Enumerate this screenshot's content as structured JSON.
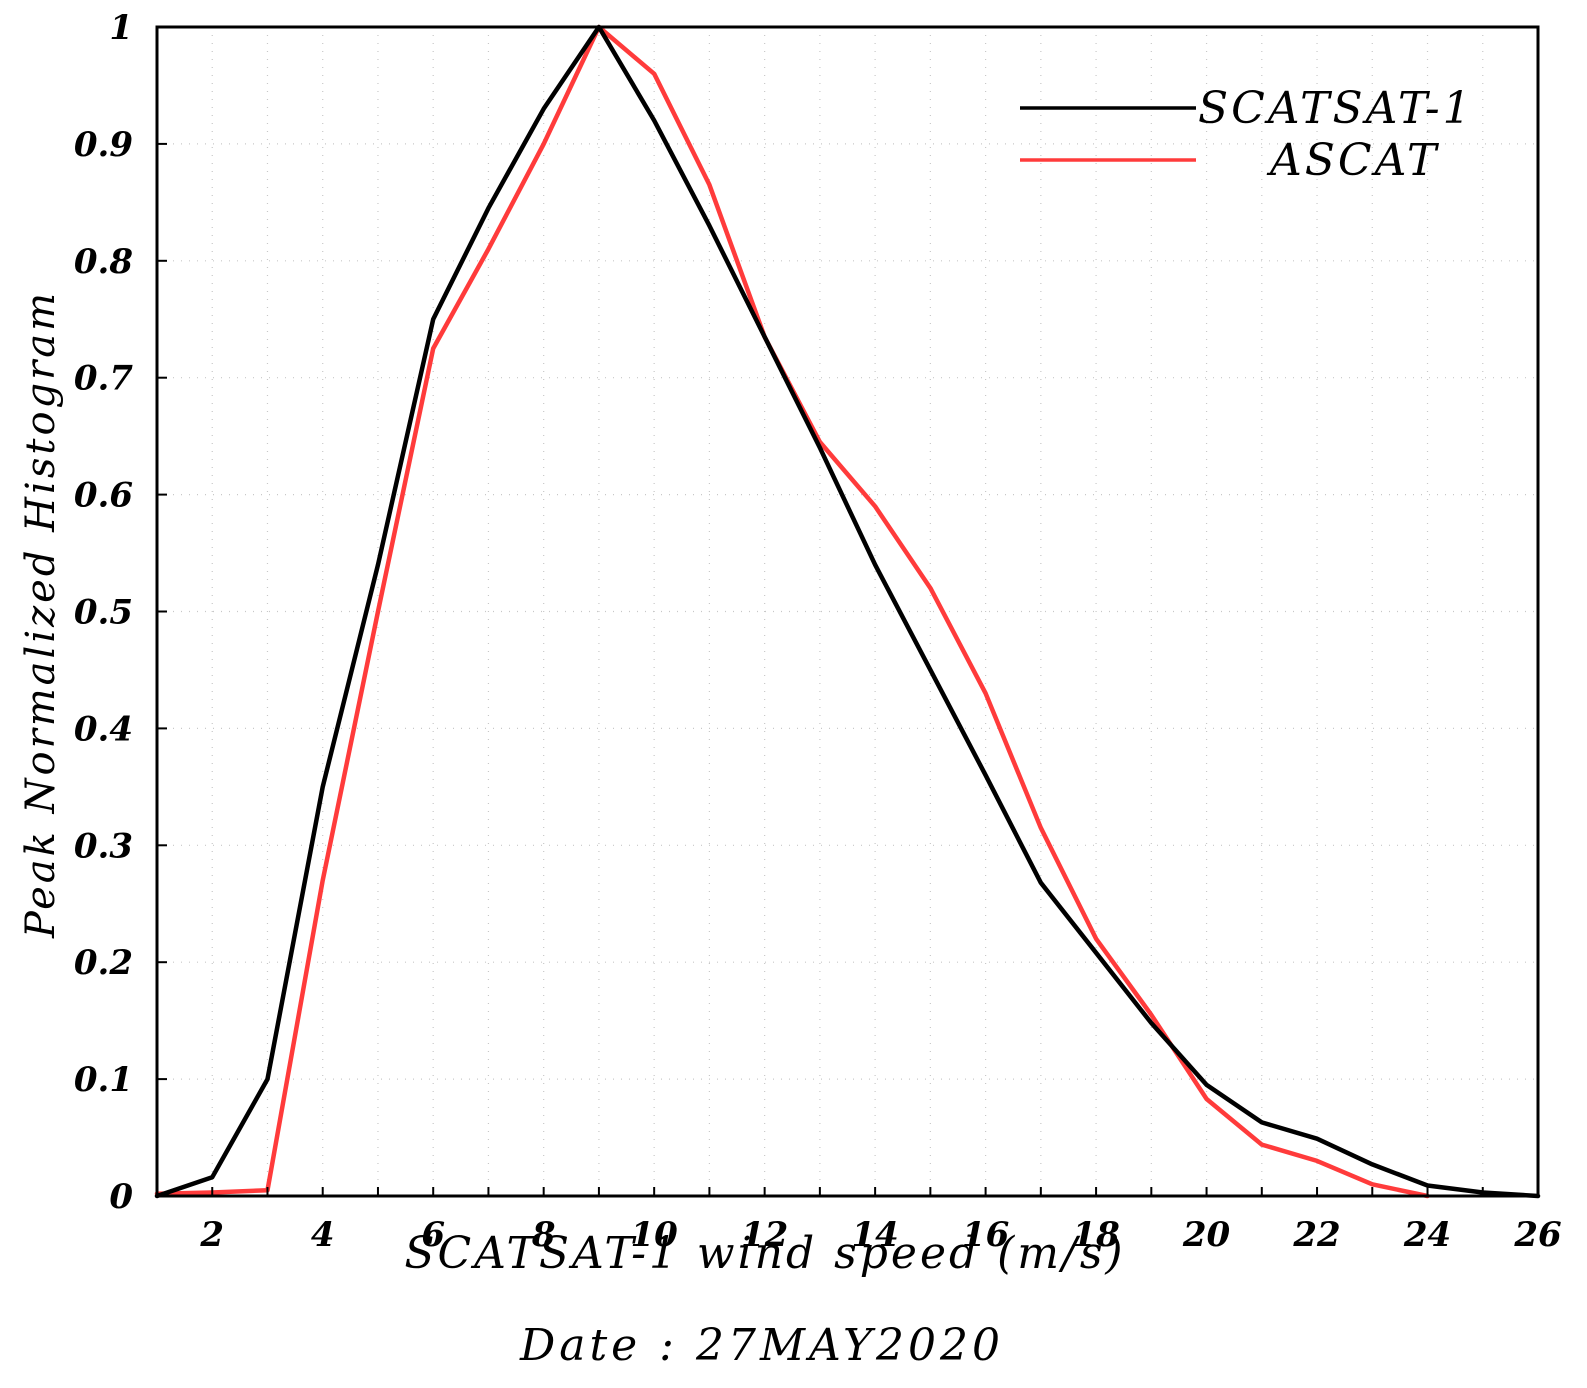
{
  "chart_data": {
    "type": "line",
    "title": "",
    "xlabel": "SCATSAT-1 wind speed (m/s)",
    "ylabel": "Peak Normalized Histogram",
    "date_label": "Date : 27MAY2020",
    "xlim": [
      1,
      26
    ],
    "ylim": [
      0,
      1
    ],
    "xticks": [
      2,
      4,
      6,
      8,
      10,
      12,
      14,
      16,
      18,
      20,
      22,
      24,
      26
    ],
    "yticks": [
      0,
      0.1,
      0.2,
      0.3,
      0.4,
      0.5,
      0.6,
      0.7,
      0.8,
      0.9,
      1
    ],
    "ytick_labels": [
      "0",
      "0.1",
      "0.2",
      "0.3",
      "0.4",
      "0.5",
      "0.6",
      "0.7",
      "0.8",
      "0.9",
      "1"
    ],
    "grid": true,
    "legend_position": "top-right",
    "series": [
      {
        "name": "SCATSAT-1",
        "color": "#000000",
        "x": [
          1,
          2,
          3,
          4,
          5,
          6,
          7,
          8,
          9,
          10,
          11,
          12,
          13,
          14,
          15,
          16,
          17,
          18,
          19,
          20,
          21,
          22,
          23,
          24,
          25,
          26
        ],
        "y": [
          0.0,
          0.016,
          0.1,
          0.35,
          0.54,
          0.75,
          0.845,
          0.93,
          1.0,
          0.92,
          0.83,
          0.735,
          0.64,
          0.54,
          0.45,
          0.36,
          0.268,
          0.208,
          0.148,
          0.095,
          0.063,
          0.049,
          0.027,
          0.009,
          0.003,
          0.0
        ]
      },
      {
        "name": "ASCAT",
        "color": "#ff3b3b",
        "x": [
          1,
          2,
          3,
          4,
          5,
          6,
          7,
          8,
          9,
          10,
          11,
          12,
          13,
          14,
          15,
          16,
          17,
          18,
          19,
          20,
          21,
          22,
          23,
          24
        ],
        "y": [
          0.002,
          0.003,
          0.005,
          0.27,
          0.5,
          0.725,
          0.81,
          0.9,
          1.0,
          0.96,
          0.865,
          0.735,
          0.645,
          0.59,
          0.52,
          0.43,
          0.315,
          0.22,
          0.155,
          0.083,
          0.044,
          0.03,
          0.01,
          0.0
        ]
      }
    ]
  }
}
